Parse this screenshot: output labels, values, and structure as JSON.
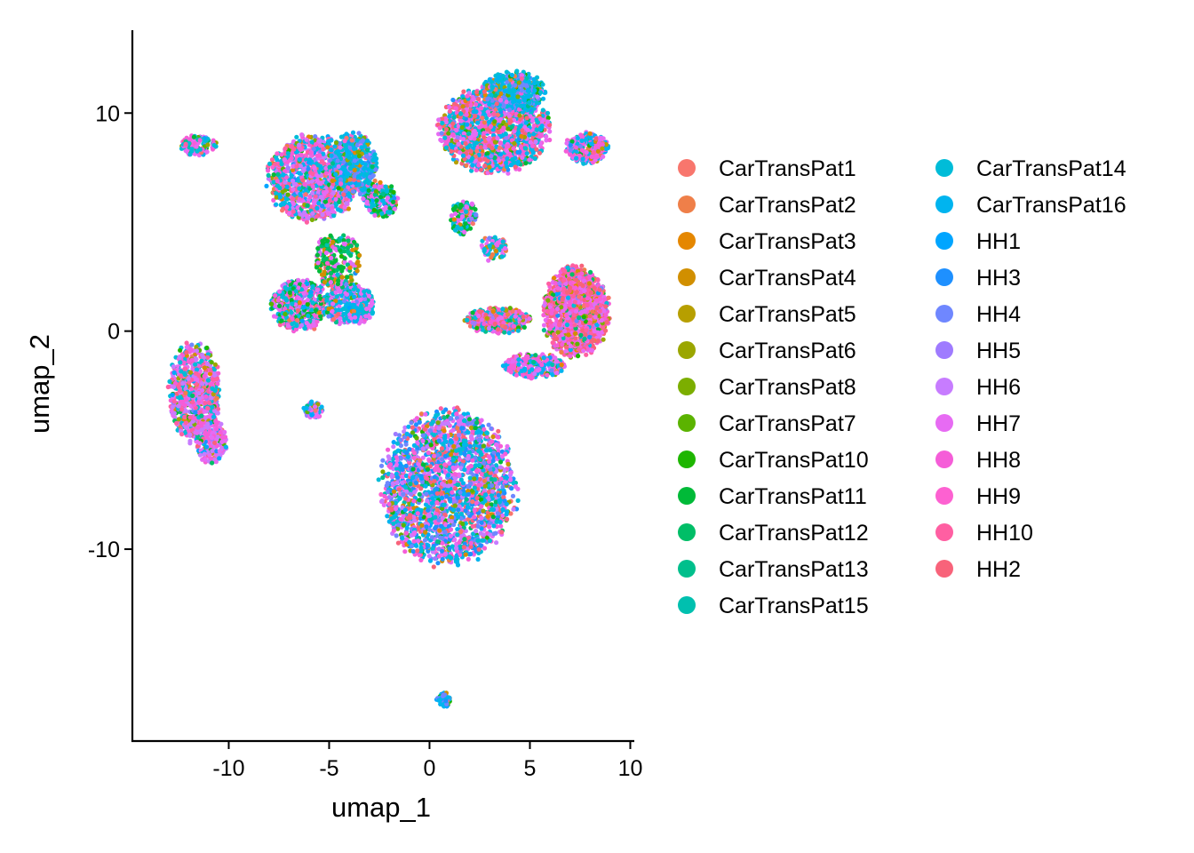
{
  "chart_data": {
    "type": "scatter",
    "title": "",
    "xlabel": "umap_1",
    "ylabel": "umap_2",
    "xlim": [
      -14.8,
      10.2
    ],
    "ylim": [
      -18.8,
      13.8
    ],
    "xticks": [
      -10,
      -5,
      0,
      5,
      10
    ],
    "yticks": [
      -10,
      0,
      10
    ],
    "xtick_labels": [
      "-10",
      "-5",
      "0",
      "5",
      "10"
    ],
    "ytick_labels": [
      "-10",
      "0",
      "10"
    ],
    "grid": false,
    "legend_position": "right",
    "legend_columns": 2,
    "series": [
      {
        "name": "CarTransPat1",
        "color": "#F8766D"
      },
      {
        "name": "CarTransPat2",
        "color": "#EF7F49"
      },
      {
        "name": "CarTransPat3",
        "color": "#E58700"
      },
      {
        "name": "CarTransPat4",
        "color": "#D18F00"
      },
      {
        "name": "CarTransPat5",
        "color": "#B79F00"
      },
      {
        "name": "CarTransPat6",
        "color": "#9BA600"
      },
      {
        "name": "CarTransPat8",
        "color": "#7CAE00"
      },
      {
        "name": "CarTransPat7",
        "color": "#5BB300"
      },
      {
        "name": "CarTransPat10",
        "color": "#1EB600"
      },
      {
        "name": "CarTransPat11",
        "color": "#00BA38"
      },
      {
        "name": "CarTransPat12",
        "color": "#00BE67"
      },
      {
        "name": "CarTransPat13",
        "color": "#00BF8C"
      },
      {
        "name": "CarTransPat15",
        "color": "#00C0AF"
      },
      {
        "name": "CarTransPat14",
        "color": "#00BCD8"
      },
      {
        "name": "CarTransPat16",
        "color": "#00B4EF"
      },
      {
        "name": "HH1",
        "color": "#00A5FF"
      },
      {
        "name": "HH3",
        "color": "#1E90FF"
      },
      {
        "name": "HH4",
        "color": "#6F87FF"
      },
      {
        "name": "HH5",
        "color": "#9F7BFF"
      },
      {
        "name": "HH6",
        "color": "#C77CFF"
      },
      {
        "name": "HH7",
        "color": "#E76BF3"
      },
      {
        "name": "HH8",
        "color": "#F55DD8"
      },
      {
        "name": "HH9",
        "color": "#FD61D1"
      },
      {
        "name": "HH10",
        "color": "#FF5FA2"
      },
      {
        "name": "HH2",
        "color": "#F8637A"
      }
    ],
    "clusters": [
      {
        "cx": -11.5,
        "cy": 8.5,
        "rx": 0.9,
        "ry": 0.5,
        "n": 120,
        "dom": [
          20,
          21,
          13
        ]
      },
      {
        "cx": -5.8,
        "cy": 7.0,
        "rx": 2.3,
        "ry": 2.0,
        "n": 1100,
        "dom": [
          20,
          21,
          23,
          19,
          13,
          14
        ]
      },
      {
        "cx": -3.8,
        "cy": 7.6,
        "rx": 1.2,
        "ry": 1.5,
        "n": 500,
        "dom": [
          14,
          13,
          17
        ]
      },
      {
        "cx": -2.4,
        "cy": 6.0,
        "rx": 0.9,
        "ry": 0.8,
        "n": 200,
        "dom": [
          20,
          13,
          9
        ]
      },
      {
        "cx": -6.5,
        "cy": 1.2,
        "rx": 1.5,
        "ry": 1.2,
        "n": 450,
        "dom": [
          20,
          21,
          13,
          9
        ]
      },
      {
        "cx": -4.0,
        "cy": 1.2,
        "rx": 1.3,
        "ry": 1.0,
        "n": 350,
        "dom": [
          20,
          13,
          14
        ]
      },
      {
        "cx": -4.6,
        "cy": 3.2,
        "rx": 1.2,
        "ry": 1.3,
        "n": 220,
        "dom": [
          9,
          10,
          20,
          3
        ]
      },
      {
        "cx": 3.2,
        "cy": 9.2,
        "rx": 2.8,
        "ry": 2.0,
        "n": 1400,
        "dom": [
          24,
          20,
          21,
          13,
          14
        ]
      },
      {
        "cx": 4.2,
        "cy": 11.0,
        "rx": 1.6,
        "ry": 0.9,
        "n": 450,
        "dom": [
          14,
          13,
          17
        ]
      },
      {
        "cx": 7.8,
        "cy": 8.4,
        "rx": 1.1,
        "ry": 0.7,
        "n": 300,
        "dom": [
          20,
          21,
          14
        ]
      },
      {
        "cx": 1.7,
        "cy": 5.2,
        "rx": 0.7,
        "ry": 0.8,
        "n": 120,
        "dom": [
          20,
          13,
          9
        ]
      },
      {
        "cx": 3.2,
        "cy": 3.8,
        "rx": 0.7,
        "ry": 0.6,
        "n": 90,
        "dom": [
          20,
          13
        ]
      },
      {
        "cx": 7.3,
        "cy": 0.9,
        "rx": 1.7,
        "ry": 2.1,
        "n": 1300,
        "dom": [
          24,
          23,
          20,
          21
        ]
      },
      {
        "cx": 3.4,
        "cy": 0.5,
        "rx": 1.6,
        "ry": 0.6,
        "n": 400,
        "dom": [
          24,
          20,
          21,
          13
        ]
      },
      {
        "cx": 5.2,
        "cy": -1.6,
        "rx": 1.6,
        "ry": 0.6,
        "n": 250,
        "dom": [
          20,
          21,
          14
        ]
      },
      {
        "cx": -11.7,
        "cy": -2.8,
        "rx": 1.3,
        "ry": 2.3,
        "n": 700,
        "dom": [
          21,
          20,
          23,
          19,
          13
        ]
      },
      {
        "cx": -10.9,
        "cy": -5.0,
        "rx": 0.8,
        "ry": 1.1,
        "n": 220,
        "dom": [
          20,
          19,
          21
        ]
      },
      {
        "cx": -5.8,
        "cy": -3.6,
        "rx": 0.5,
        "ry": 0.4,
        "n": 70,
        "dom": [
          20,
          14
        ]
      },
      {
        "cx": 0.9,
        "cy": -7.2,
        "rx": 3.4,
        "ry": 3.6,
        "n": 2200,
        "dom": [
          14,
          16,
          17,
          20,
          21,
          24,
          19,
          13
        ]
      },
      {
        "cx": 0.7,
        "cy": -16.9,
        "rx": 0.35,
        "ry": 0.35,
        "n": 60,
        "dom": [
          14,
          16,
          17
        ]
      }
    ]
  }
}
